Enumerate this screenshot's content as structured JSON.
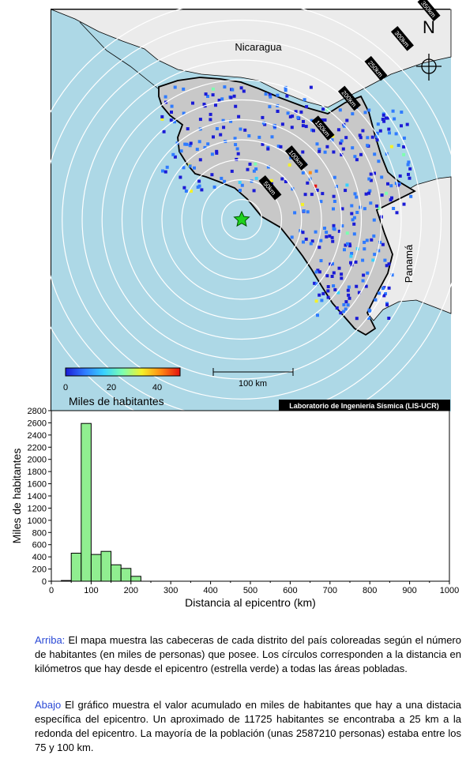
{
  "map": {
    "country_labels": [
      "Nicaragua",
      "Panamá"
    ],
    "north_label": "N",
    "ring_labels": [
      "50km",
      "100km",
      "150km",
      "200km",
      "250km",
      "300km",
      "350km"
    ],
    "colorbar": {
      "ticks": [
        "0",
        "20",
        "40"
      ],
      "title": "Miles de habitantes",
      "colors": [
        "#1b1bd6",
        "#2f7bff",
        "#38d1ff",
        "#7dffb0",
        "#f4f12a",
        "#ff8a12",
        "#e31010"
      ]
    },
    "scale_label": "100 km",
    "credit": "Laboratorio de Ingeniería Sísmica (LIS-UCR)",
    "colors": {
      "sea": "#add8e6",
      "land_home": "#c8c8c8",
      "land_other": "#ebebeb",
      "epicenter": "#1fd21f"
    }
  },
  "chart_data": {
    "type": "bar",
    "xlabel": "Distancia al epicentro (km)",
    "ylabel": "Miles de habitantes",
    "xlim": [
      0,
      1000
    ],
    "ylim": [
      0,
      2800
    ],
    "x_ticks": [
      0,
      100,
      200,
      300,
      400,
      500,
      600,
      700,
      800,
      900,
      1000
    ],
    "y_ticks": [
      0,
      200,
      400,
      600,
      800,
      1000,
      1200,
      1400,
      1600,
      1800,
      2000,
      2200,
      2400,
      2600,
      2800
    ],
    "bin_width": 25,
    "bin_left_edges": [
      25,
      50,
      75,
      100,
      125,
      150,
      175,
      200
    ],
    "values": [
      12,
      460,
      2590,
      440,
      490,
      270,
      210,
      80
    ],
    "bar_color": "#90ee90"
  },
  "captions": [
    {
      "lead": "Arriba:",
      "text": " El mapa muestra las cabeceras de cada distrito del país coloreadas según el número de habitantes (en miles de personas) que posee.  Los círculos corresponden a la distancia en kilómetros que hay desde el epicentro (estrella verde) a todas las áreas pobladas."
    },
    {
      "lead": "Abajo",
      "text": " El gráfico muestra el valor acumulado en miles de habitantes que hay a una distacia específica del epicentro.  Un aproximado de 11725 habitantes se encontraba a 25 km a la redonda del epicentro.  La mayoría de la población (unas 2587210 personas) estaba entre los 75 y 100 km."
    }
  ]
}
